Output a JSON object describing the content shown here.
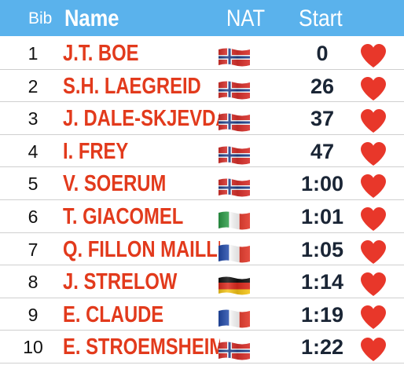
{
  "header": {
    "bib": "Bib",
    "name": "Name",
    "nat": "NAT",
    "start": "Start"
  },
  "colors": {
    "header_bg": "#5ab2ec",
    "name_text": "#e23a1c",
    "heart": "#e8372a"
  },
  "rows": [
    {
      "bib": "1",
      "name": "J.T. BOE",
      "nat": "NOR",
      "start": "0"
    },
    {
      "bib": "2",
      "name": "S.H. LAEGREID",
      "nat": "NOR",
      "start": "26"
    },
    {
      "bib": "3",
      "name": "J. DALE-SKJEVDAL",
      "nat": "NOR",
      "start": "37"
    },
    {
      "bib": "4",
      "name": "I. FREY",
      "nat": "NOR",
      "start": "47"
    },
    {
      "bib": "5",
      "name": "V. SOERUM",
      "nat": "NOR",
      "start": "1:00"
    },
    {
      "bib": "6",
      "name": "T. GIACOMEL",
      "nat": "ITA",
      "start": "1:01"
    },
    {
      "bib": "7",
      "name": "Q. FILLON MAILLET",
      "nat": "FRA",
      "start": "1:05"
    },
    {
      "bib": "8",
      "name": "J. STRELOW",
      "nat": "GER",
      "start": "1:14"
    },
    {
      "bib": "9",
      "name": "E. CLAUDE",
      "nat": "FRA",
      "start": "1:19"
    },
    {
      "bib": "10",
      "name": "E. STROEMSHEIM",
      "nat": "NOR",
      "start": "1:22"
    }
  ]
}
